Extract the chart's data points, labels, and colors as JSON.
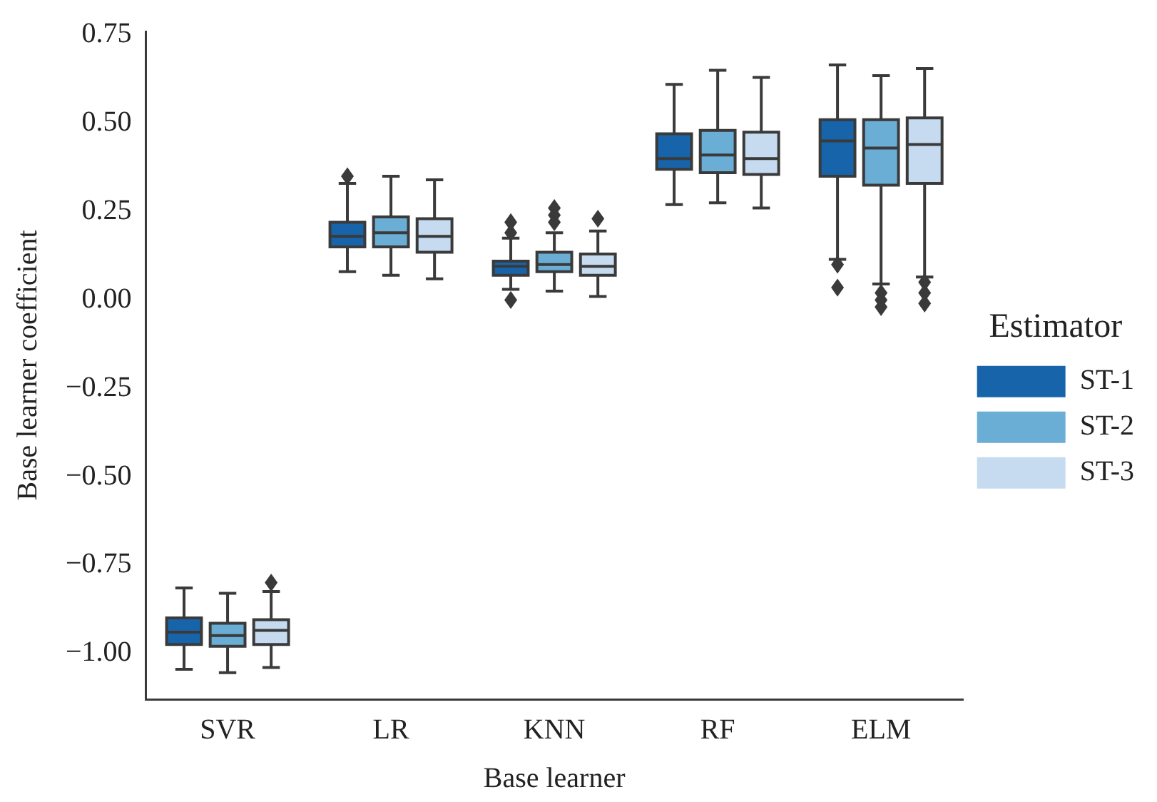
{
  "chart_data": {
    "type": "box",
    "xlabel": "Base learner",
    "ylabel": "Base learner coefficient",
    "legend_title": "Estimator",
    "legend": "right",
    "grid": false,
    "marker": "diamond",
    "categories": [
      "SVR",
      "LR",
      "KNN",
      "RF",
      "ELM"
    ],
    "ylim": [
      -1.13,
      0.76
    ],
    "yticks": [
      {
        "value": -1.0,
        "label": "−1.00"
      },
      {
        "value": -0.75,
        "label": "−0.75"
      },
      {
        "value": -0.5,
        "label": "−0.50"
      },
      {
        "value": -0.25,
        "label": "−0.25"
      },
      {
        "value": 0.0,
        "label": "0.00"
      },
      {
        "value": 0.25,
        "label": "0.25"
      },
      {
        "value": 0.5,
        "label": "0.50"
      },
      {
        "value": 0.75,
        "label": "0.75"
      }
    ],
    "series": [
      {
        "name": "ST-1",
        "color": "#1764ab",
        "boxes": [
          {
            "low": -1.045,
            "q1": -0.975,
            "median": -0.94,
            "q3": -0.9,
            "high": -0.815
          },
          {
            "low": 0.08,
            "q1": 0.15,
            "median": 0.18,
            "q3": 0.22,
            "high": 0.33,
            "outliers": [
              0.35
            ]
          },
          {
            "low": 0.03,
            "q1": 0.07,
            "median": 0.095,
            "q3": 0.11,
            "high": 0.175,
            "outliers": [
              0.19,
              0.22,
              0.0
            ]
          },
          {
            "low": 0.27,
            "q1": 0.37,
            "median": 0.4,
            "q3": 0.47,
            "high": 0.61
          },
          {
            "low": 0.115,
            "q1": 0.35,
            "median": 0.45,
            "q3": 0.51,
            "high": 0.665,
            "outliers": [
              0.1,
              0.035
            ]
          }
        ]
      },
      {
        "name": "ST-2",
        "color": "#6aaed6",
        "boxes": [
          {
            "low": -1.055,
            "q1": -0.98,
            "median": -0.95,
            "q3": -0.915,
            "high": -0.83
          },
          {
            "low": 0.07,
            "q1": 0.15,
            "median": 0.19,
            "q3": 0.235,
            "high": 0.35
          },
          {
            "low": 0.025,
            "q1": 0.08,
            "median": 0.1,
            "q3": 0.135,
            "high": 0.19,
            "outliers": [
              0.22,
              0.24,
              0.26
            ]
          },
          {
            "low": 0.275,
            "q1": 0.36,
            "median": 0.41,
            "q3": 0.48,
            "high": 0.65
          },
          {
            "low": 0.045,
            "q1": 0.325,
            "median": 0.43,
            "q3": 0.51,
            "high": 0.635,
            "outliers": [
              0.02,
              0.0,
              -0.02
            ]
          }
        ]
      },
      {
        "name": "ST-3",
        "color": "#c6dbef",
        "boxes": [
          {
            "low": -1.04,
            "q1": -0.975,
            "median": -0.935,
            "q3": -0.905,
            "high": -0.825,
            "outliers": [
              -0.8
            ]
          },
          {
            "low": 0.06,
            "q1": 0.135,
            "median": 0.18,
            "q3": 0.23,
            "high": 0.34
          },
          {
            "low": 0.01,
            "q1": 0.07,
            "median": 0.095,
            "q3": 0.13,
            "high": 0.195,
            "outliers": [
              0.23
            ]
          },
          {
            "low": 0.26,
            "q1": 0.355,
            "median": 0.4,
            "q3": 0.475,
            "high": 0.63
          },
          {
            "low": 0.065,
            "q1": 0.33,
            "median": 0.44,
            "q3": 0.515,
            "high": 0.655,
            "outliers": [
              0.05,
              0.02,
              -0.01
            ]
          }
        ]
      }
    ]
  }
}
